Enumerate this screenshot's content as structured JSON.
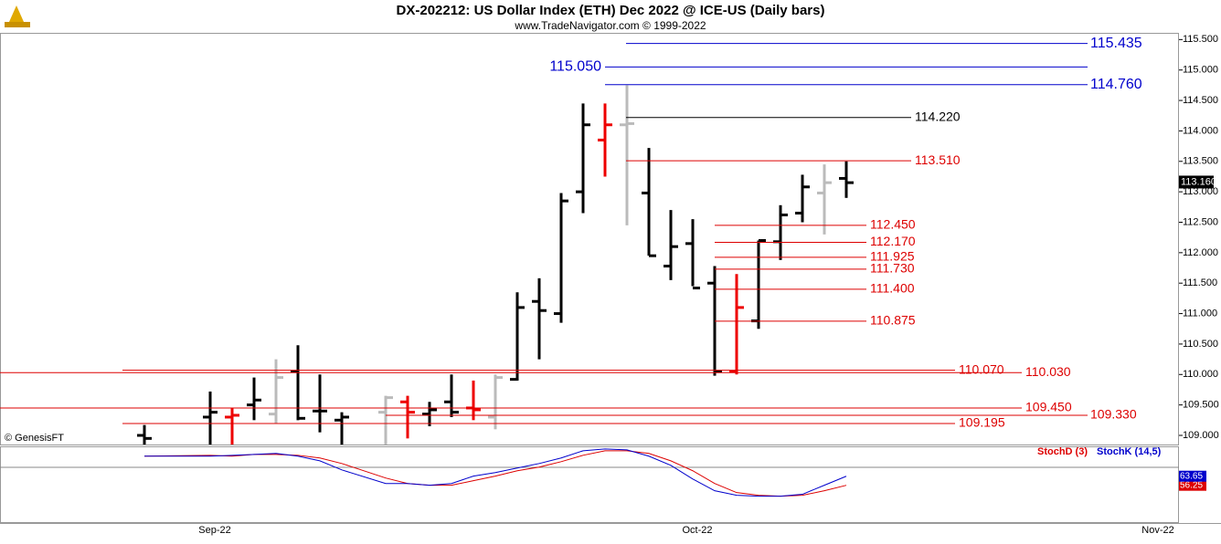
{
  "chart_data": {
    "type": "ohlc",
    "title": "DX-202212:  US Dollar Index (ETH) Dec 2022 @ ICE-US  (Daily bars)",
    "subtitle": "www.TradeNavigator.com © 1999-2022",
    "copyright": "© GenesisFT",
    "ylim": [
      108.85,
      115.61
    ],
    "yticks": [
      {
        "value": 109,
        "label": "109.000"
      },
      {
        "value": 109.5,
        "label": "109.500"
      },
      {
        "value": 110,
        "label": "110.000"
      },
      {
        "value": 110.5,
        "label": "110.500"
      },
      {
        "value": 111,
        "label": "111.000"
      },
      {
        "value": 111.5,
        "label": "111.500"
      },
      {
        "value": 112,
        "label": "112.000"
      },
      {
        "value": 112.5,
        "label": "112.500"
      },
      {
        "value": 113,
        "label": "113.000"
      },
      {
        "value": 113.5,
        "label": "113.500"
      },
      {
        "value": 114,
        "label": "114.000"
      },
      {
        "value": 114.5,
        "label": "114.500"
      },
      {
        "value": 115,
        "label": "115.000"
      },
      {
        "value": 115.5,
        "label": "115.500"
      }
    ],
    "x_labels": [
      "Sep-22",
      "Oct-22",
      "Nov-22"
    ],
    "ohlc": {
      "open": [
        109.0,
        109.3,
        109.3,
        109.5,
        109.35,
        110.05,
        109.4,
        109.25,
        109.38,
        109.55,
        109.35,
        109.55,
        109.45,
        109.3,
        109.92,
        111.2,
        111.0,
        113.0,
        113.85,
        114.1,
        112.98,
        111.78,
        112.15,
        111.5,
        110.05,
        110.88,
        112.18,
        112.65,
        112.98,
        113.22
      ],
      "high": [
        109.17,
        109.72,
        109.45,
        109.95,
        110.25,
        110.48,
        110.0,
        109.38,
        109.65,
        109.65,
        109.55,
        110.0,
        109.9,
        110.0,
        111.35,
        111.58,
        112.98,
        114.45,
        114.45,
        114.75,
        113.72,
        112.7,
        112.55,
        111.78,
        111.65,
        112.2,
        112.78,
        113.28,
        113.45,
        113.5
      ],
      "low": [
        108.85,
        108.85,
        108.85,
        109.25,
        109.2,
        109.25,
        109.05,
        108.85,
        108.85,
        108.95,
        109.15,
        109.3,
        109.25,
        109.1,
        109.9,
        110.25,
        110.85,
        112.65,
        113.25,
        112.45,
        111.95,
        111.55,
        111.45,
        109.98,
        110.0,
        110.75,
        111.88,
        112.5,
        112.3,
        112.9
      ],
      "close": [
        108.95,
        109.38,
        109.33,
        109.58,
        109.95,
        109.28,
        109.4,
        109.3,
        109.62,
        109.38,
        109.42,
        109.38,
        109.42,
        109.95,
        111.1,
        111.05,
        112.85,
        114.1,
        114.1,
        114.12,
        111.95,
        112.1,
        111.42,
        110.05,
        111.1,
        112.2,
        112.62,
        113.08,
        113.15,
        113.15
      ],
      "colors": [
        "#000",
        "#000",
        "#e00",
        "#000",
        "#bbb",
        "#000",
        "#000",
        "#000",
        "#bbb",
        "#e00",
        "#000",
        "#000",
        "#e00",
        "#bbb",
        "#000",
        "#000",
        "#000",
        "#000",
        "#e00",
        "#bbb",
        "#000",
        "#000",
        "#000",
        "#000",
        "#e00",
        "#000",
        "#000",
        "#000",
        "#bbb",
        "#000"
      ]
    },
    "last_price": {
      "value": 113.16,
      "label": "113.160"
    },
    "levels": [
      {
        "value": 115.435,
        "label": "115.435",
        "color": "#0000cc"
      },
      {
        "value": 115.05,
        "label": "115.050",
        "color": "#0000cc"
      },
      {
        "value": 114.76,
        "label": "114.760",
        "color": "#0000cc"
      },
      {
        "value": 114.22,
        "label": "114.220",
        "color": "#000000"
      },
      {
        "value": 113.51,
        "label": "113.510",
        "color": "#dd0000"
      },
      {
        "value": 112.45,
        "label": "112.450",
        "color": "#dd0000"
      },
      {
        "value": 112.17,
        "label": "112.170",
        "color": "#dd0000"
      },
      {
        "value": 111.925,
        "label": "111.925",
        "color": "#dd0000"
      },
      {
        "value": 111.73,
        "label": "111.730",
        "color": "#dd0000"
      },
      {
        "value": 111.4,
        "label": "111.400",
        "color": "#dd0000"
      },
      {
        "value": 110.875,
        "label": "110.875",
        "color": "#dd0000"
      },
      {
        "value": 110.07,
        "label": "110.070",
        "color": "#dd0000"
      },
      {
        "value": 110.03,
        "label": "110.030",
        "color": "#dd0000"
      },
      {
        "value": 109.45,
        "label": "109.450",
        "color": "#dd0000"
      },
      {
        "value": 109.33,
        "label": "109.330",
        "color": "#dd0000"
      },
      {
        "value": 109.195,
        "label": "109.195",
        "color": "#dd0000"
      }
    ],
    "stoch": {
      "ylim": [
        27,
        88
      ],
      "series": [
        {
          "name": "StochD (3)",
          "color": "#dd0000",
          "values": [
            80,
            80.7,
            80,
            81.4,
            81.4,
            80.7,
            78.5,
            74,
            62.2,
            57.7,
            56.3,
            56.3,
            60,
            63.7,
            68.1,
            71.1,
            75.5,
            80.7,
            84.4,
            84.4,
            82.2,
            76.2,
            68.1,
            57.7,
            50.3,
            48.1,
            47.4,
            48.1,
            51.8,
            56.25
          ],
          "last_value": {
            "value": 56.25,
            "label": "56.25"
          }
        },
        {
          "name": "StochK (14,5)",
          "color": "#0000cc",
          "values": [
            80,
            80,
            80.7,
            81.4,
            82.2,
            80,
            76.2,
            68.8,
            57.7,
            57.7,
            56.3,
            57.7,
            63.7,
            66.6,
            70.3,
            74,
            78.5,
            84.4,
            85.9,
            85.1,
            80,
            72.5,
            61.4,
            51.8,
            48.1,
            47.4,
            47.4,
            48.9,
            56.3,
            63.65
          ],
          "last_value": {
            "value": 63.65,
            "label": "63.65"
          }
        }
      ]
    }
  }
}
